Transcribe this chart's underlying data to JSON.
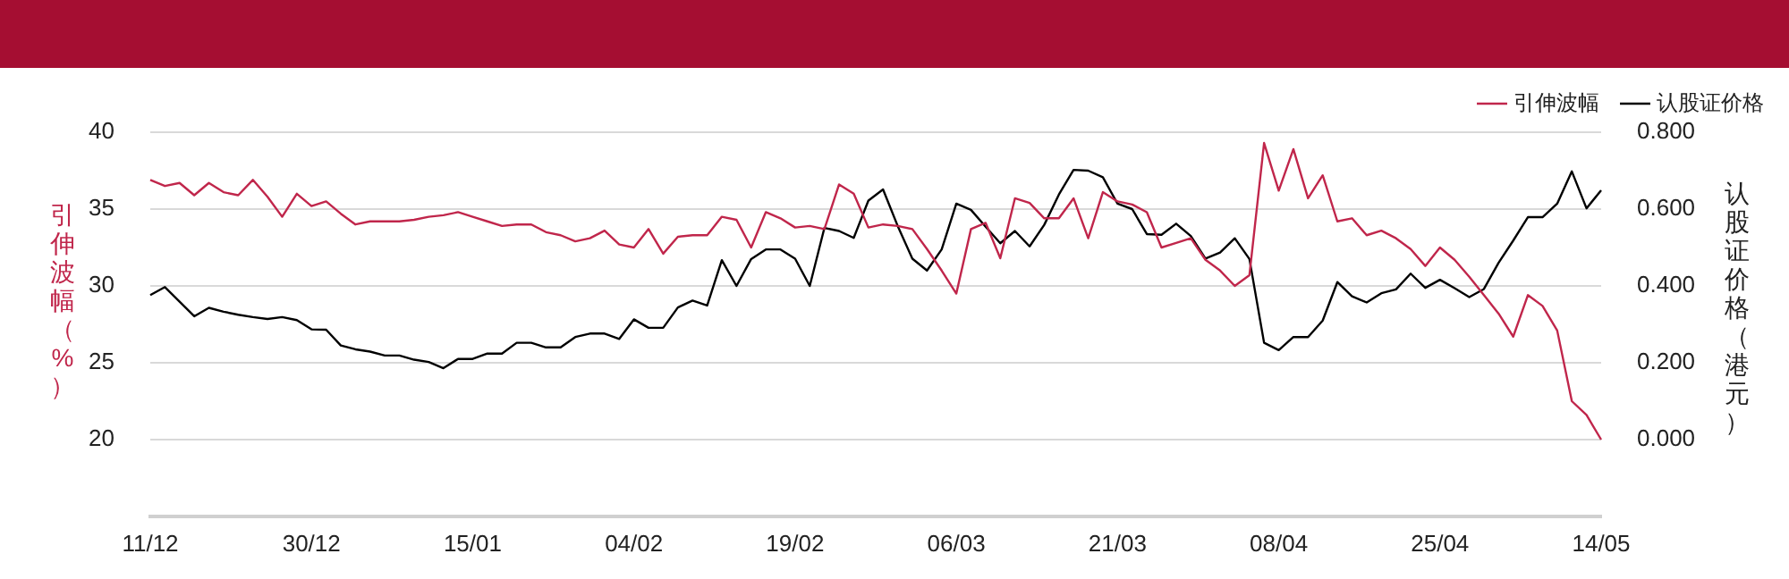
{
  "chart_data": {
    "type": "line",
    "ylabel": "引伸波幅（%）",
    "y2label": "认股证价格（港元）",
    "categories": [
      "11/12",
      null,
      null,
      null,
      null,
      null,
      null,
      null,
      null,
      null,
      null,
      "30/12",
      null,
      null,
      null,
      null,
      null,
      null,
      null,
      null,
      null,
      null,
      "15/01",
      null,
      null,
      null,
      null,
      null,
      null,
      null,
      null,
      null,
      null,
      "04/02",
      null,
      null,
      null,
      null,
      null,
      null,
      null,
      null,
      null,
      null,
      "19/02",
      null,
      null,
      null,
      null,
      null,
      null,
      null,
      null,
      null,
      null,
      "06/03",
      null,
      null,
      null,
      null,
      null,
      null,
      null,
      null,
      null,
      null,
      "21/03",
      null,
      null,
      null,
      null,
      null,
      null,
      null,
      null,
      null,
      null,
      "08/04",
      null,
      null,
      null,
      null,
      null,
      null,
      null,
      null,
      null,
      null,
      "25/04",
      null,
      null,
      null,
      null,
      null,
      null,
      null,
      null,
      null,
      null,
      "14/05"
    ],
    "series": [
      {
        "name": "引伸波幅",
        "color": "#c0264b",
        "values": [
          36.9,
          36.5,
          36.7,
          35.9,
          36.7,
          36.1,
          35.9,
          36.9,
          35.8,
          34.5,
          36.0,
          35.2,
          35.5,
          34.7,
          34.0,
          34.2,
          34.2,
          34.2,
          34.3,
          34.5,
          34.6,
          34.8,
          34.5,
          34.2,
          33.9,
          34.0,
          34.0,
          33.5,
          33.3,
          32.9,
          33.1,
          33.6,
          32.7,
          32.5,
          33.7,
          32.1,
          33.2,
          33.3,
          33.3,
          34.5,
          34.3,
          32.5,
          34.8,
          34.4,
          33.8,
          33.9,
          33.7,
          36.6,
          36.0,
          33.8,
          34.0,
          33.9,
          33.7,
          32.4,
          31.0,
          29.5,
          33.7,
          34.1,
          31.8,
          35.7,
          35.4,
          34.4,
          34.4,
          35.7,
          33.1,
          36.1,
          35.5,
          35.3,
          34.8,
          32.5,
          32.8,
          33.1,
          31.7,
          31.0,
          30.0,
          30.7,
          39.3,
          36.2,
          38.9,
          35.7,
          37.2,
          34.2,
          34.4,
          33.3,
          33.6,
          33.1,
          32.4,
          31.3,
          32.5,
          31.7,
          30.6,
          29.4,
          28.2,
          26.7,
          29.4,
          28.7,
          27.1,
          22.5,
          21.6,
          20.0
        ]
      },
      {
        "name": "认股证价格",
        "color": "#000000",
        "axis": "y2",
        "values": [
          0.376,
          0.397,
          0.359,
          0.321,
          0.343,
          0.333,
          0.325,
          0.319,
          0.314,
          0.319,
          0.311,
          0.287,
          0.286,
          0.245,
          0.235,
          0.229,
          0.219,
          0.219,
          0.208,
          0.202,
          0.186,
          0.21,
          0.21,
          0.224,
          0.224,
          0.252,
          0.252,
          0.24,
          0.24,
          0.267,
          0.276,
          0.276,
          0.262,
          0.313,
          0.291,
          0.291,
          0.344,
          0.362,
          0.349,
          0.467,
          0.4,
          0.47,
          0.495,
          0.495,
          0.471,
          0.4,
          0.551,
          0.543,
          0.525,
          0.622,
          0.651,
          0.556,
          0.471,
          0.44,
          0.495,
          0.614,
          0.598,
          0.554,
          0.511,
          0.543,
          0.503,
          0.559,
          0.638,
          0.702,
          0.7,
          0.683,
          0.614,
          0.6,
          0.535,
          0.533,
          0.562,
          0.53,
          0.471,
          0.487,
          0.524,
          0.47,
          0.252,
          0.233,
          0.267,
          0.267,
          0.31,
          0.41,
          0.373,
          0.357,
          0.381,
          0.391,
          0.432,
          0.395,
          0.416,
          0.394,
          0.371,
          0.392,
          0.46,
          0.518,
          0.579,
          0.579,
          0.614,
          0.698,
          0.602,
          0.649
        ]
      }
    ],
    "ylim": [
      15,
      40
    ],
    "yticks": [
      {
        "value": 15,
        "label": null
      },
      20,
      25,
      30,
      35,
      40
    ],
    "y2lim": [
      -0.2,
      0.8
    ],
    "y2ticks": [
      {
        "value": -0.2,
        "label": null
      },
      {
        "value": 0,
        "label": "0.000"
      },
      {
        "value": 0.2,
        "label": "0.200"
      },
      {
        "value": 0.4,
        "label": "0.400"
      },
      {
        "value": 0.6,
        "label": "0.600"
      },
      {
        "value": 0.8,
        "label": "0.800"
      }
    ],
    "grid": "y",
    "legend": "top right",
    "marker": "none",
    "line_style": "solid"
  }
}
